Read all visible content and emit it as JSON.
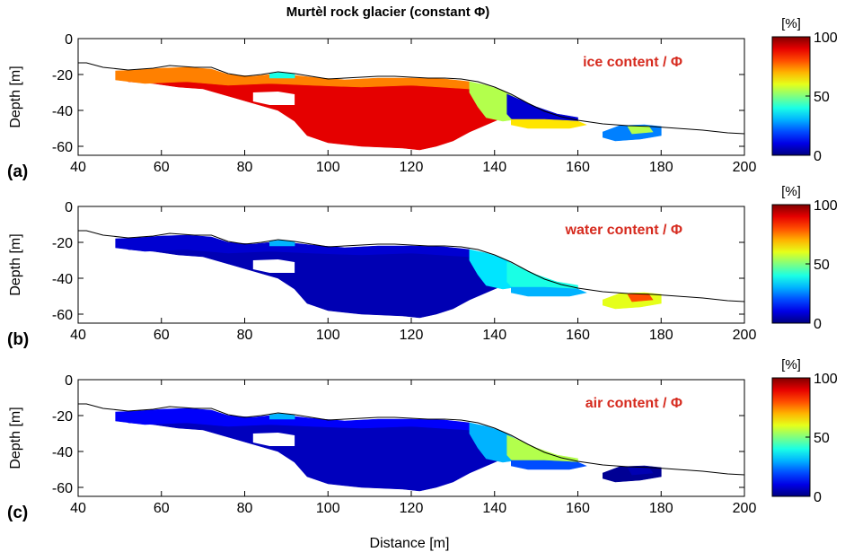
{
  "chart_data": {
    "type": "heatmap",
    "title": "Murtèl rock glacier (constant  Φ)",
    "xlabel": "Distance [m]",
    "ylabel": "Depth [m]",
    "xlim": [
      40,
      200
    ],
    "ylim": [
      -65,
      0
    ],
    "xticks": [
      40,
      60,
      80,
      100,
      120,
      140,
      160,
      180,
      200
    ],
    "yticks": [
      0,
      -20,
      -40,
      -60
    ],
    "colorbar": {
      "unit": "[%]",
      "min": 0,
      "max": 100,
      "ticks": [
        0,
        50,
        100
      ],
      "colormap": "jet"
    },
    "surface_topography": [
      [
        40,
        -13.5
      ],
      [
        42,
        -13.5
      ],
      [
        46,
        -16
      ],
      [
        52,
        -17.5
      ],
      [
        58,
        -16.5
      ],
      [
        62,
        -15
      ],
      [
        68,
        -16
      ],
      [
        72,
        -16
      ],
      [
        76,
        -19.5
      ],
      [
        80,
        -21
      ],
      [
        84,
        -20
      ],
      [
        88,
        -18.5
      ],
      [
        92,
        -19.5
      ],
      [
        96,
        -21
      ],
      [
        100,
        -22.5
      ],
      [
        104,
        -22
      ],
      [
        108,
        -21.5
      ],
      [
        112,
        -21
      ],
      [
        116,
        -21
      ],
      [
        120,
        -21.5
      ],
      [
        124,
        -22
      ],
      [
        128,
        -22
      ],
      [
        132,
        -22.5
      ],
      [
        136,
        -24
      ],
      [
        140,
        -27
      ],
      [
        144,
        -31
      ],
      [
        148,
        -36
      ],
      [
        152,
        -40.5
      ],
      [
        156,
        -43.5
      ],
      [
        160,
        -45.5
      ],
      [
        166,
        -47.5
      ],
      [
        172,
        -48.5
      ],
      [
        178,
        -49
      ],
      [
        184,
        -50
      ],
      [
        190,
        -51
      ],
      [
        196,
        -52.5
      ],
      [
        200,
        -53
      ]
    ],
    "panels": [
      {
        "label": "(a)",
        "variable": "ice content / Φ",
        "regions": {
          "main_body": 90,
          "upper_surface_layer": 75,
          "surface_patches": 40,
          "downslope_zone": 55,
          "lower_wedge": 8,
          "lower_strip": 65,
          "toe_lens": 25,
          "toe_spot": 55
        }
      },
      {
        "label": "(b)",
        "variable": "water content / Φ",
        "regions": {
          "main_body": 5,
          "upper_surface_layer": 8,
          "surface_patches": 30,
          "downslope_zone": 35,
          "lower_wedge": 40,
          "lower_strip": 30,
          "toe_lens": 60,
          "toe_spot": 80
        }
      },
      {
        "label": "(c)",
        "variable": "air content / Φ",
        "regions": {
          "main_body": 6,
          "upper_surface_layer": 12,
          "surface_patches": 30,
          "downslope_zone": 30,
          "lower_wedge": 55,
          "lower_strip": 20,
          "toe_lens": 2,
          "toe_spot": 5
        }
      }
    ]
  }
}
